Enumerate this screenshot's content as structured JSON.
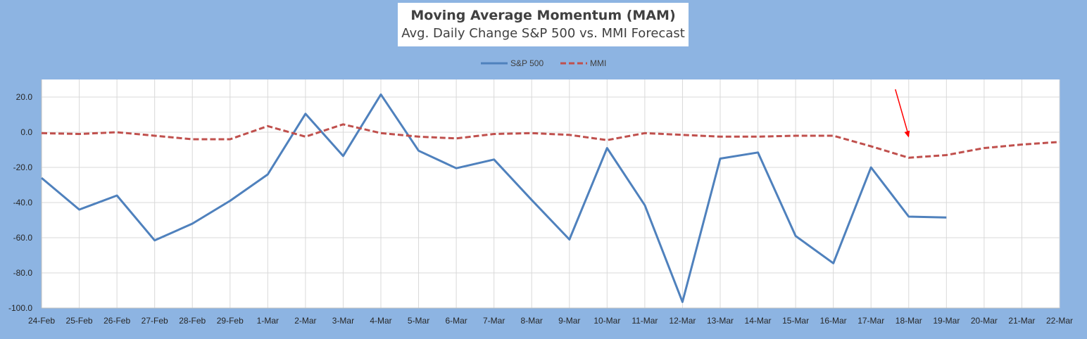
{
  "chart_data": {
    "type": "line",
    "title": "Moving Average Momentum (MAM)",
    "subtitle": "Avg. Daily Change S&P 500 vs. MMI Forecast",
    "categories": [
      "24-Feb",
      "25-Feb",
      "26-Feb",
      "27-Feb",
      "28-Feb",
      "29-Feb",
      "1-Mar",
      "2-Mar",
      "3-Mar",
      "4-Mar",
      "5-Mar",
      "6-Mar",
      "7-Mar",
      "8-Mar",
      "9-Mar",
      "10-Mar",
      "11-Mar",
      "12-Mar",
      "13-Mar",
      "14-Mar",
      "15-Mar",
      "16-Mar",
      "17-Mar",
      "18-Mar",
      "19-Mar",
      "20-Mar",
      "21-Mar",
      "22-Mar"
    ],
    "series": [
      {
        "name": "S&P 500",
        "color": "#4f81bd",
        "style": "solid",
        "values": [
          -26,
          -44,
          -36,
          -61.5,
          -52,
          -39,
          -24,
          10.5,
          -13.5,
          21.5,
          -10.5,
          -20.5,
          -15.5,
          -38.5,
          -61,
          -9,
          -41.5,
          -96.5,
          -15,
          -11.5,
          -59,
          -74.5,
          -20,
          -48,
          -48.5,
          null,
          null,
          null
        ]
      },
      {
        "name": "MMI",
        "color": "#c0504d",
        "style": "dashed",
        "values": [
          -0.5,
          -1,
          0,
          -2,
          -4,
          -4,
          3.5,
          -2.5,
          4.5,
          -0.5,
          -2.5,
          -3.5,
          -1,
          -0.5,
          -1.5,
          -4.5,
          -0.5,
          -1.5,
          -2.5,
          -2.5,
          -2,
          -2,
          -8,
          -14.5,
          -13,
          -9,
          -7,
          -5.5
        ]
      }
    ],
    "ylim": [
      -100,
      30
    ],
    "yticks": [
      "-100.0",
      "-80.0",
      "-60.0",
      "-40.0",
      "-20.0",
      "0.0",
      "20.0"
    ],
    "grid": true,
    "legend_position": "top",
    "annotation": {
      "type": "arrow",
      "color": "#ff0000",
      "points_to": "18-Mar"
    }
  }
}
